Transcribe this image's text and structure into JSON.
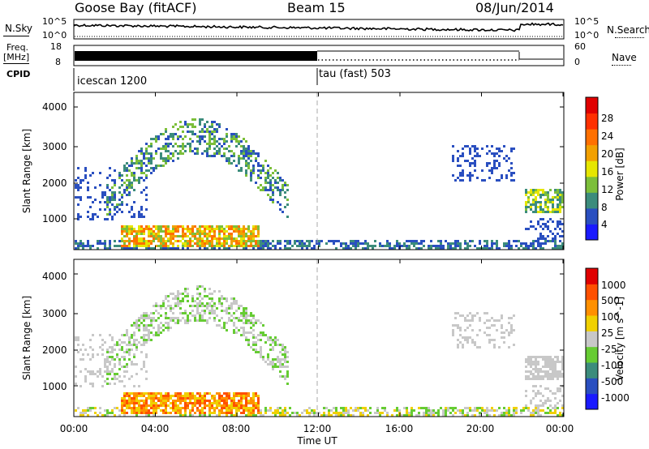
{
  "header": {
    "station": "Goose Bay (fitACF)",
    "beam": "Beam 15",
    "date": "08/Jun/2014"
  },
  "left_labels": {
    "nsky": "N.Sky",
    "freq": "Freq.",
    "freq_unit": "[MHz]",
    "cpid": "CPID"
  },
  "right_labels": {
    "nsearch": "N.Search",
    "nave": "Nave"
  },
  "noise_panel": {
    "left_ticks": [
      "10^5",
      "10^0"
    ],
    "right_ticks": [
      "10^5",
      "10^0"
    ]
  },
  "freq_panel": {
    "left_ticks": [
      "18",
      "8"
    ],
    "right_ticks": [
      "60",
      "0"
    ]
  },
  "cpid_panel": {
    "segments": [
      {
        "label": "icescan 1200",
        "start_hour": 0
      },
      {
        "label": "tau (fast) 503",
        "start_hour": 12
      }
    ]
  },
  "chart_data": [
    {
      "type": "heatmap",
      "name": "power",
      "ylabel": "Slant Range [km]",
      "yticks": [
        "4000",
        "3000",
        "2000",
        "1000"
      ],
      "colorbar_label": "Power [dB]",
      "colorbar_ticks": [
        "28",
        "24",
        "20",
        "16",
        "12",
        "8",
        "4"
      ],
      "colors": [
        "#1a1aff",
        "#2a4fc0",
        "#3c8c7c",
        "#7cbf3a",
        "#e6e600",
        "#f2a000",
        "#ff7000",
        "#ff3000",
        "#e00000"
      ],
      "ylim": [
        180,
        4500
      ],
      "xlim": [
        0,
        24
      ]
    },
    {
      "type": "heatmap",
      "name": "velocity",
      "ylabel": "Slant Range [km]",
      "yticks": [
        "4000",
        "3000",
        "2000",
        "1000"
      ],
      "colorbar_label": "Velocity [m s^-1]",
      "colorbar_ticks": [
        "1000",
        "500",
        "100",
        "25",
        "-25",
        "-100",
        "-500",
        "-1000"
      ],
      "colors": [
        "#1a1aff",
        "#2a4fc0",
        "#3c8c7c",
        "#66cc33",
        "#c8c8c8",
        "#f0d000",
        "#ff9000",
        "#ff5000",
        "#e00000"
      ],
      "ylim": [
        180,
        4500
      ],
      "xlim": [
        0,
        24
      ]
    }
  ],
  "x_axis": {
    "ticks": [
      "00:00",
      "04:00",
      "08:00",
      "12:00",
      "16:00",
      "20:00",
      "00:00"
    ],
    "label": "Time UT"
  }
}
